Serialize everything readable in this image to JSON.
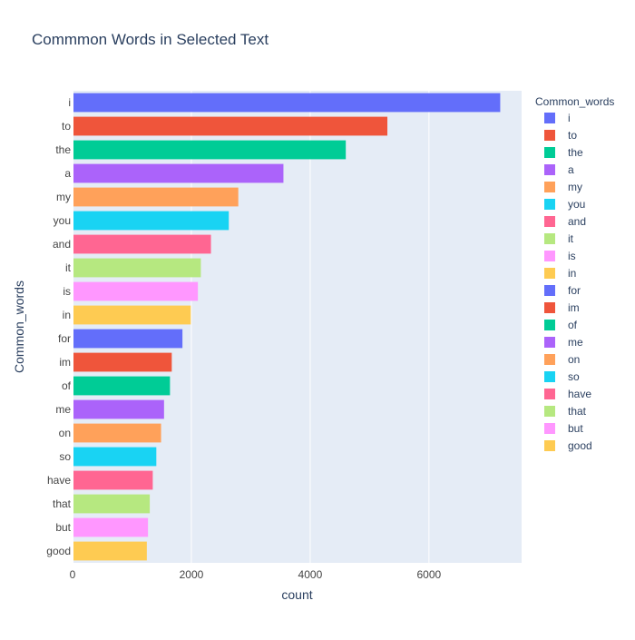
{
  "chart_data": {
    "type": "bar",
    "orientation": "horizontal",
    "title": "Commmon Words in Selected Text",
    "xlabel": "count",
    "ylabel": "Common_words",
    "legend_title": "Common_words",
    "legend_position": "right",
    "grid": true,
    "xlim": [
      0,
      7560
    ],
    "xticks": [
      0,
      2000,
      4000,
      6000
    ],
    "xtick_labels": [
      "0",
      "2000",
      "4000",
      "6000"
    ],
    "categories": [
      "i",
      "to",
      "the",
      "a",
      "my",
      "you",
      "and",
      "it",
      "is",
      "in",
      "for",
      "im",
      "of",
      "me",
      "on",
      "so",
      "have",
      "that",
      "but",
      "good"
    ],
    "values": [
      7200,
      5300,
      4600,
      3550,
      2790,
      2630,
      2330,
      2160,
      2110,
      1990,
      1850,
      1670,
      1640,
      1540,
      1490,
      1410,
      1350,
      1300,
      1270,
      1250
    ],
    "colors": [
      "#636efa",
      "#EF553B",
      "#00cc96",
      "#ab63fa",
      "#FFA15A",
      "#19d3f3",
      "#FF6692",
      "#B6E880",
      "#FF97FF",
      "#FECB52",
      "#636efa",
      "#EF553B",
      "#00cc96",
      "#ab63fa",
      "#FFA15A",
      "#19d3f3",
      "#FF6692",
      "#B6E880",
      "#FF97FF",
      "#FECB52"
    ]
  },
  "style": {
    "plot_background": "#E5ECF6",
    "grid_color": "#ffffff",
    "text_color": "#2a3f5f",
    "tick_color": "#444444"
  }
}
